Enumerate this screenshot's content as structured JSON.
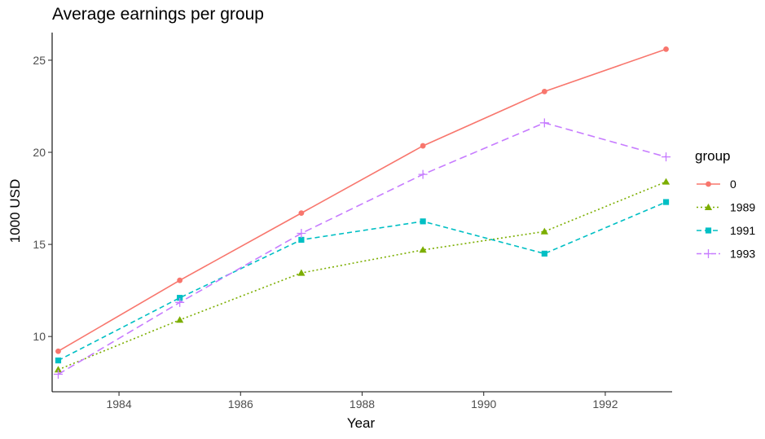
{
  "chart_data": {
    "type": "line",
    "title": "Average earnings per group",
    "xlabel": "Year",
    "ylabel": "1000 USD",
    "x": [
      1983,
      1985,
      1987,
      1989,
      1991,
      1993
    ],
    "xticks": [
      "1984",
      "1986",
      "1988",
      "1990",
      "1992"
    ],
    "yticks": [
      "10",
      "15",
      "20",
      "25"
    ],
    "xlim": [
      1982.9,
      1993.1
    ],
    "ylim": [
      7.0,
      26.5
    ],
    "grid": false,
    "legend": {
      "title": "group",
      "position": "right"
    },
    "series": [
      {
        "name": "0",
        "color": "#F8766D",
        "linestyle": "solid",
        "marker": "circle",
        "values": [
          9.2,
          13.05,
          16.7,
          20.35,
          23.3,
          25.6
        ]
      },
      {
        "name": "1989",
        "color": "#7CAE00",
        "linestyle": "dotted",
        "marker": "triangle",
        "values": [
          8.2,
          10.9,
          13.45,
          14.7,
          15.7,
          18.4
        ]
      },
      {
        "name": "1991",
        "color": "#00BFC4",
        "linestyle": "dashed",
        "marker": "square",
        "values": [
          8.7,
          12.1,
          15.25,
          16.25,
          14.5,
          17.3
        ]
      },
      {
        "name": "1993",
        "color": "#C77CFF",
        "linestyle": "longdash",
        "marker": "plus",
        "values": [
          7.95,
          11.85,
          15.6,
          18.8,
          21.6,
          19.75
        ]
      }
    ]
  }
}
